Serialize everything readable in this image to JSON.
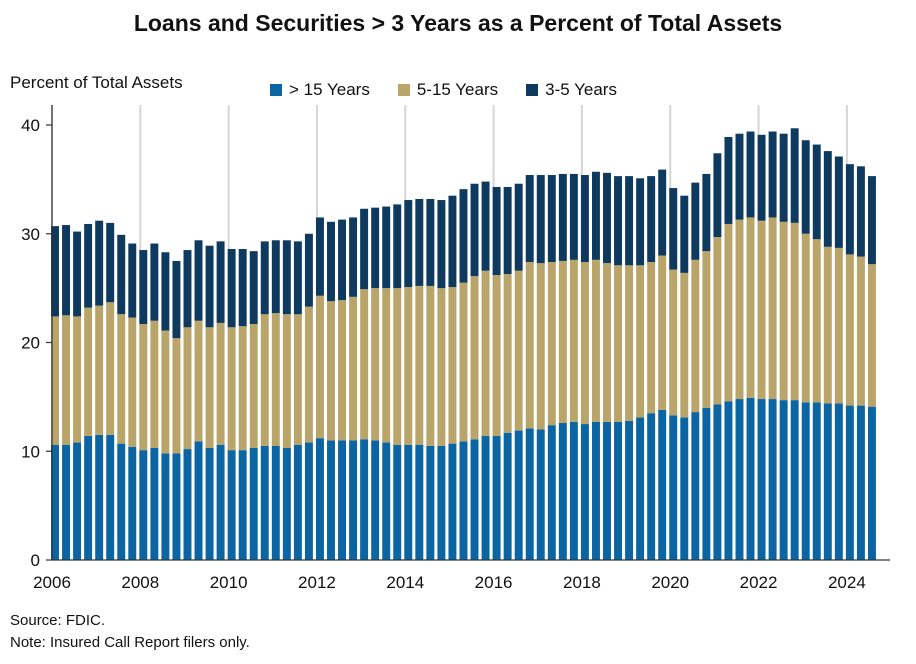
{
  "title": "Loans and Securities > 3 Years as a Percent of Total Assets",
  "source": "Source: FDIC.",
  "note": "Note: Insured Call Report filers only.",
  "chart_data": {
    "type": "bar",
    "stacked": true,
    "title": "Loans and Securities > 3 Years as a Percent of Total Assets",
    "ylabel": "Percent of Total Assets",
    "xlabel": "",
    "ylim": [
      0,
      40
    ],
    "yticks": [
      0,
      10,
      20,
      30,
      40
    ],
    "xlim": [
      2006,
      2024.75
    ],
    "xticks": [
      "2006",
      "2008",
      "2010",
      "2012",
      "2014",
      "2016",
      "2018",
      "2020",
      "2022",
      "2024"
    ],
    "grid": "vertical",
    "legend_position": "top",
    "x": [
      2006.0,
      2006.25,
      2006.5,
      2006.75,
      2007.0,
      2007.25,
      2007.5,
      2007.75,
      2008.0,
      2008.25,
      2008.5,
      2008.75,
      2009.0,
      2009.25,
      2009.5,
      2009.75,
      2010.0,
      2010.25,
      2010.5,
      2010.75,
      2011.0,
      2011.25,
      2011.5,
      2011.75,
      2012.0,
      2012.25,
      2012.5,
      2012.75,
      2013.0,
      2013.25,
      2013.5,
      2013.75,
      2014.0,
      2014.25,
      2014.5,
      2014.75,
      2015.0,
      2015.25,
      2015.5,
      2015.75,
      2016.0,
      2016.25,
      2016.5,
      2016.75,
      2017.0,
      2017.25,
      2017.5,
      2017.75,
      2018.0,
      2018.25,
      2018.5,
      2018.75,
      2019.0,
      2019.25,
      2019.5,
      2019.75,
      2020.0,
      2020.25,
      2020.5,
      2020.75,
      2021.0,
      2021.25,
      2021.5,
      2021.75,
      2022.0,
      2022.25,
      2022.5,
      2022.75,
      2023.0,
      2023.25,
      2023.5,
      2023.75,
      2024.0,
      2024.25,
      2024.5
    ],
    "series": [
      {
        "name": "> 15 Years",
        "color": "#0b65a3",
        "values": [
          10.6,
          10.6,
          10.8,
          11.4,
          11.5,
          11.5,
          10.7,
          10.4,
          10.1,
          10.3,
          9.8,
          9.8,
          10.2,
          10.9,
          10.3,
          10.6,
          10.1,
          10.1,
          10.3,
          10.5,
          10.5,
          10.3,
          10.6,
          10.8,
          11.2,
          11.0,
          11.0,
          11.0,
          11.1,
          11.0,
          10.8,
          10.6,
          10.6,
          10.6,
          10.5,
          10.5,
          10.7,
          10.9,
          11.1,
          11.4,
          11.4,
          11.7,
          11.9,
          12.1,
          12.0,
          12.4,
          12.6,
          12.7,
          12.5,
          12.7,
          12.7,
          12.7,
          12.8,
          13.1,
          13.5,
          13.8,
          13.3,
          13.1,
          13.6,
          14.0,
          14.3,
          14.6,
          14.8,
          14.9,
          14.8,
          14.8,
          14.7,
          14.7,
          14.5,
          14.5,
          14.4,
          14.4,
          14.2,
          14.2,
          14.1
        ]
      },
      {
        "name": "5-15 Years",
        "color": "#b9a46a",
        "values": [
          11.8,
          11.9,
          11.6,
          11.8,
          11.9,
          12.2,
          11.9,
          11.9,
          11.6,
          11.7,
          11.3,
          10.6,
          11.2,
          11.1,
          11.1,
          11.2,
          11.3,
          11.4,
          11.4,
          12.1,
          12.2,
          12.3,
          12.0,
          12.5,
          13.1,
          12.8,
          12.9,
          13.2,
          13.8,
          14.0,
          14.2,
          14.4,
          14.5,
          14.6,
          14.7,
          14.5,
          14.4,
          14.6,
          15.0,
          15.2,
          14.8,
          14.6,
          14.7,
          15.3,
          15.3,
          15.0,
          14.9,
          14.9,
          14.9,
          14.9,
          14.6,
          14.4,
          14.3,
          14.0,
          13.9,
          14.2,
          13.4,
          13.3,
          14.0,
          14.4,
          15.4,
          16.3,
          16.5,
          16.6,
          16.4,
          16.7,
          16.4,
          16.3,
          15.5,
          15.0,
          14.4,
          14.3,
          13.9,
          13.7,
          13.1
        ]
      },
      {
        "name": "3-5 Years",
        "color": "#0f3a5f",
        "values": [
          8.3,
          8.3,
          7.8,
          7.7,
          7.8,
          7.3,
          7.3,
          6.8,
          6.8,
          7.1,
          7.2,
          7.1,
          7.1,
          7.4,
          7.5,
          7.5,
          7.2,
          7.1,
          6.7,
          6.7,
          6.7,
          6.8,
          6.7,
          6.7,
          7.2,
          7.3,
          7.4,
          7.3,
          7.4,
          7.4,
          7.5,
          7.7,
          8.0,
          8.0,
          8.0,
          8.1,
          8.4,
          8.6,
          8.5,
          8.2,
          8.1,
          8.0,
          8.0,
          8.0,
          8.1,
          8.0,
          8.0,
          7.9,
          8.0,
          8.1,
          8.3,
          8.2,
          8.2,
          8.0,
          7.9,
          7.9,
          7.5,
          7.1,
          7.1,
          7.1,
          7.7,
          8.0,
          7.9,
          7.9,
          7.9,
          7.9,
          8.1,
          8.7,
          8.6,
          8.7,
          8.8,
          8.4,
          8.3,
          8.3,
          8.1
        ]
      }
    ]
  }
}
